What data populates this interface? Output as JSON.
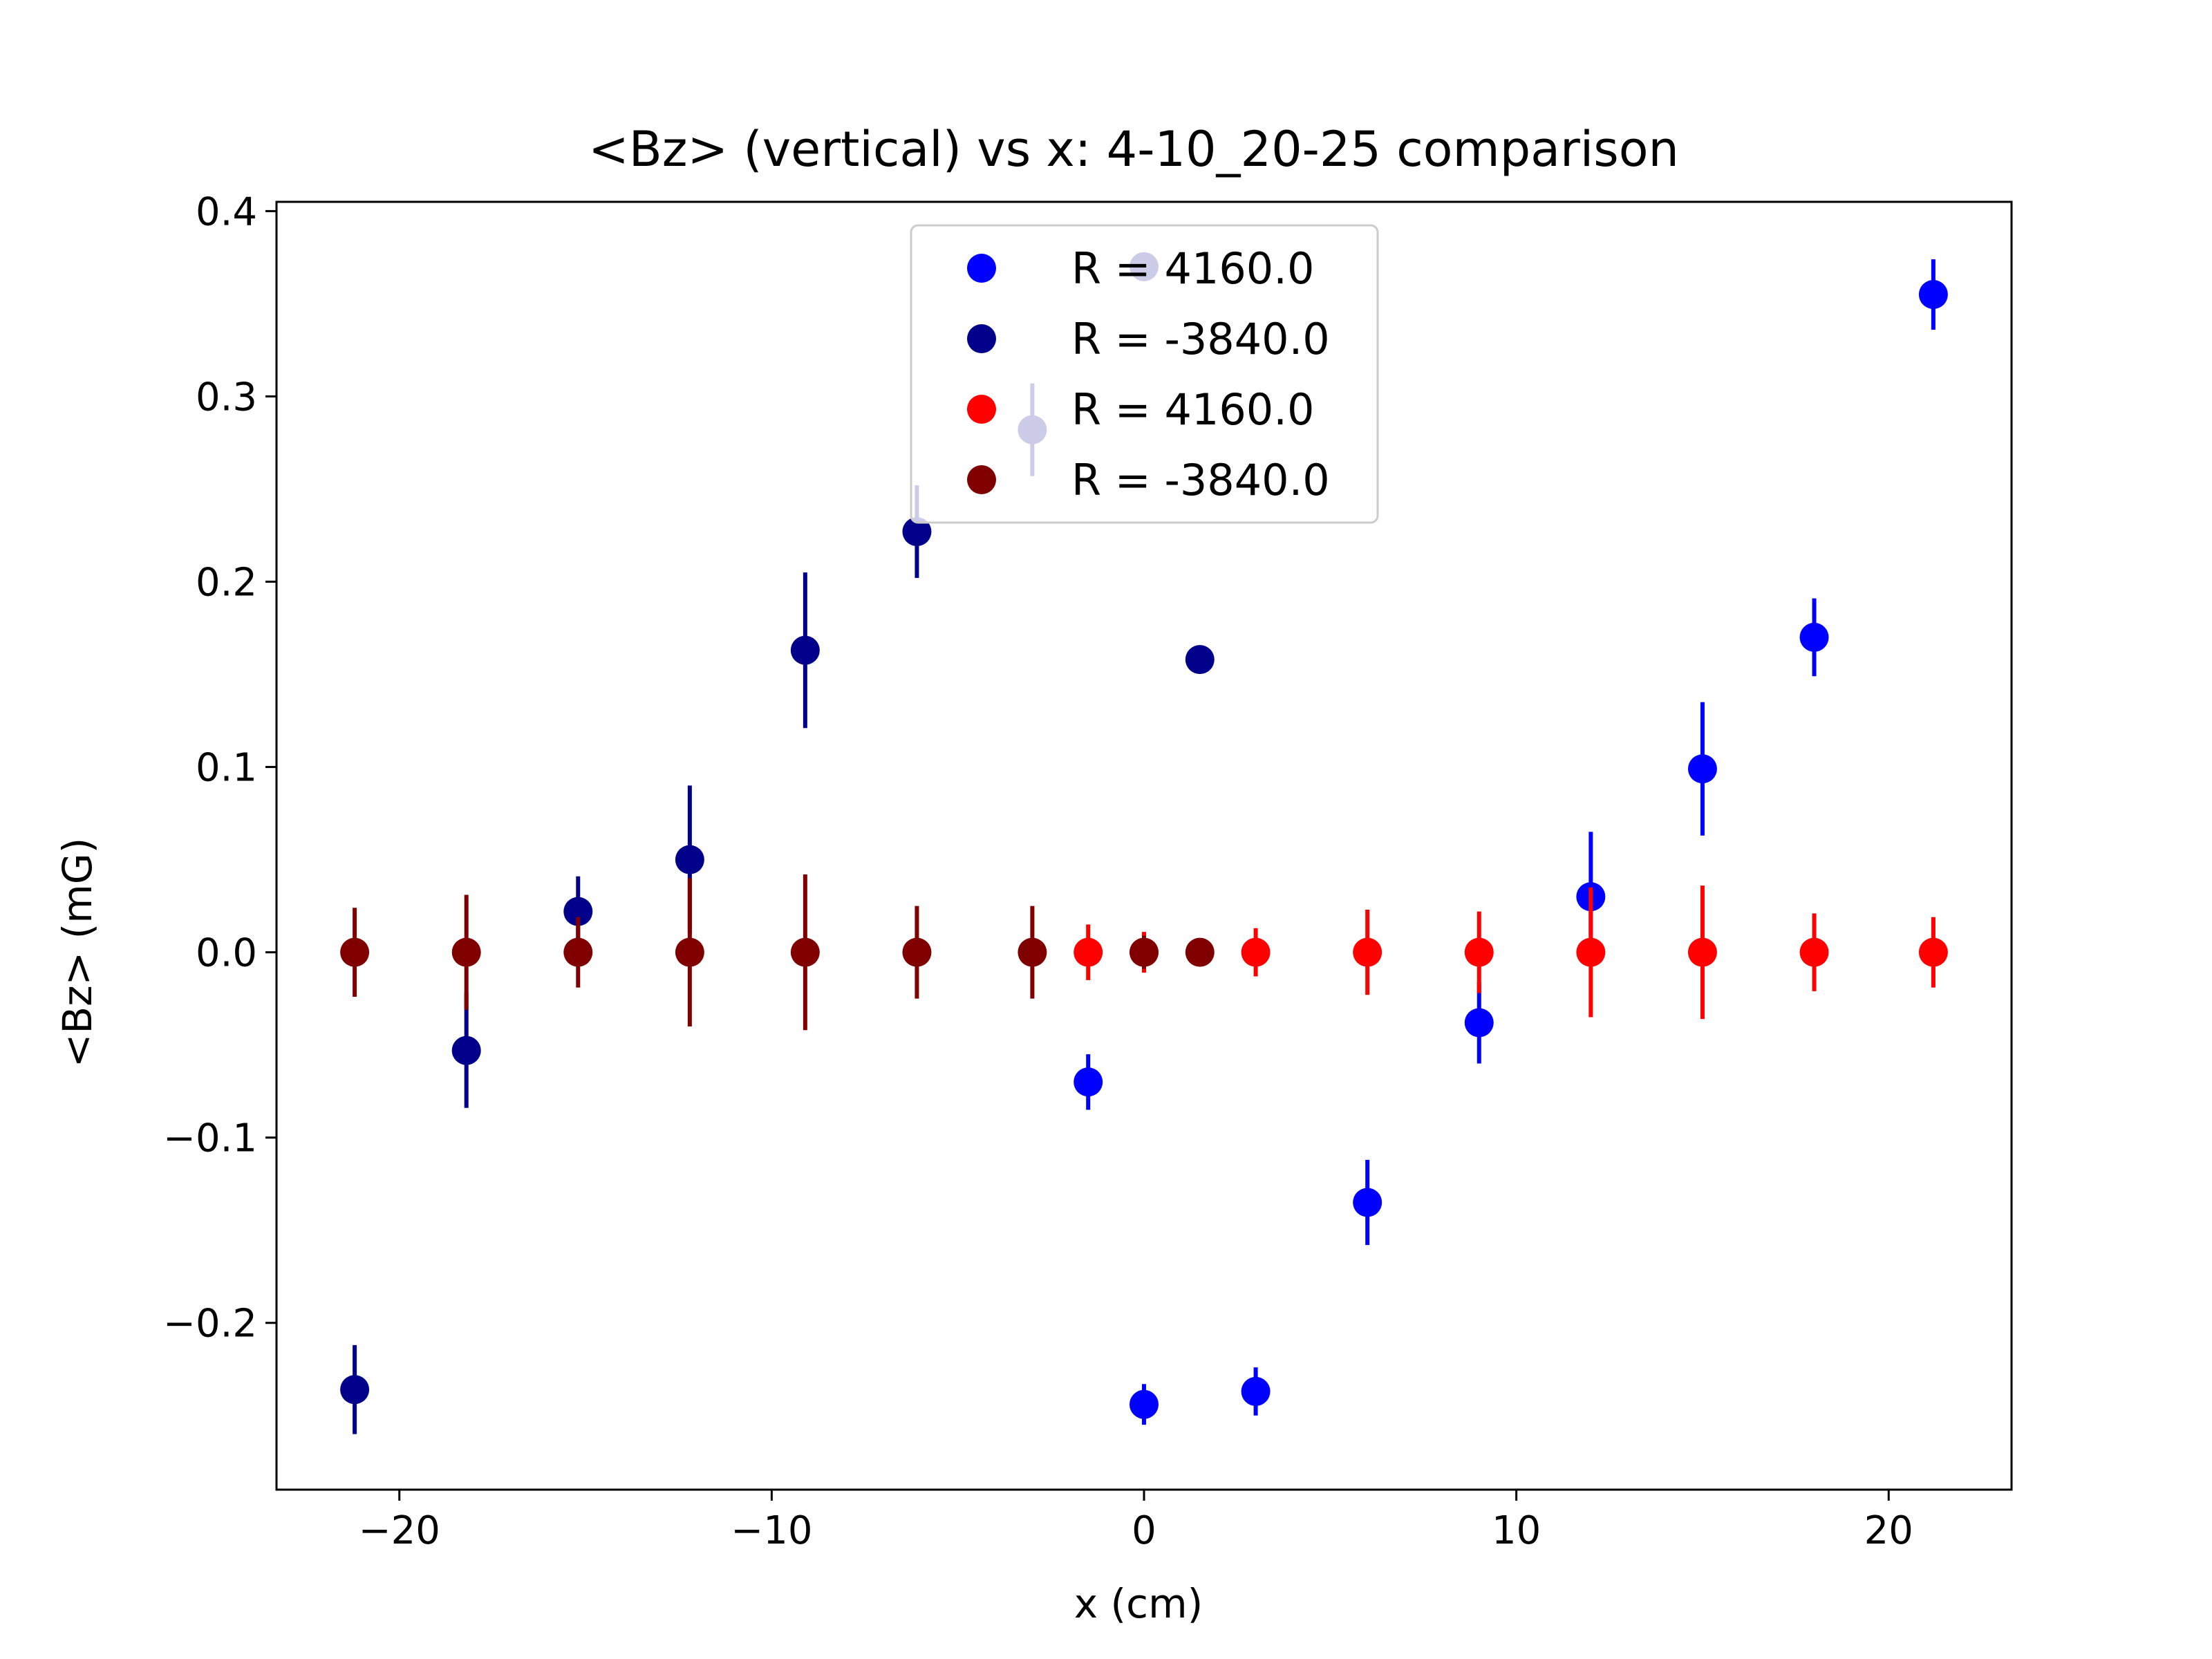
{
  "chart_data": {
    "type": "scatter",
    "title": "<Bz> (vertical) vs x: 4-10_20-25 comparison",
    "xlabel": "x (cm)",
    "ylabel": "<Bz> (mG)",
    "xlim": [
      -23.3,
      23.3
    ],
    "ylim": [
      -0.29,
      0.405
    ],
    "xticks": [
      -20,
      -10,
      0,
      10,
      20
    ],
    "xtick_labels": [
      "−20",
      "−10",
      "0",
      "10",
      "20"
    ],
    "yticks": [
      -0.2,
      -0.1,
      0.0,
      0.1,
      0.2,
      0.3,
      0.4
    ],
    "ytick_labels": [
      "−0.2",
      "−0.1",
      "0.0",
      "0.1",
      "0.2",
      "0.3",
      "0.4"
    ],
    "grid": false,
    "legend_position": "upper-center",
    "series": [
      {
        "name": "R = 4160.0",
        "color": "#0000ff",
        "x": [
          -1.5,
          0,
          3,
          6,
          9,
          12,
          15,
          18,
          21.2
        ],
        "y": [
          -0.07,
          -0.244,
          -0.237,
          -0.135,
          -0.038,
          0.03,
          0.099,
          0.17,
          0.355
        ],
        "yerr": [
          0.015,
          0.011,
          0.013,
          0.023,
          0.022,
          0.035,
          0.036,
          0.021,
          0.019
        ]
      },
      {
        "name": "R = -3840.0",
        "color": "#00008b",
        "x": [
          -21.2,
          -18.2,
          -15.2,
          -12.2,
          -9.1,
          -6.1,
          -3.0,
          0,
          1.5
        ],
        "y": [
          -0.236,
          -0.053,
          0.022,
          0.05,
          0.163,
          0.227,
          0.282,
          0.37,
          0.158
        ],
        "yerr": [
          0.024,
          0.031,
          0.019,
          0.04,
          0.042,
          0.025,
          0.025,
          0.003,
          0.003
        ]
      },
      {
        "name": "R = 4160.0",
        "color": "#ff0000",
        "x": [
          -1.5,
          0,
          3,
          6,
          9,
          12,
          15,
          18,
          21.2
        ],
        "y": [
          0,
          0,
          0,
          0,
          0,
          0,
          0,
          0,
          0
        ],
        "yerr": [
          0.015,
          0.011,
          0.013,
          0.023,
          0.022,
          0.035,
          0.036,
          0.021,
          0.019
        ]
      },
      {
        "name": "R = -3840.0",
        "color": "#800000",
        "x": [
          -21.2,
          -18.2,
          -15.2,
          -12.2,
          -9.1,
          -6.1,
          -3.0,
          0,
          1.5
        ],
        "y": [
          0,
          0,
          0,
          0,
          0,
          0,
          0,
          0,
          0
        ],
        "yerr": [
          0.024,
          0.031,
          0.019,
          0.04,
          0.042,
          0.025,
          0.025,
          0.009,
          0.003
        ]
      }
    ]
  }
}
